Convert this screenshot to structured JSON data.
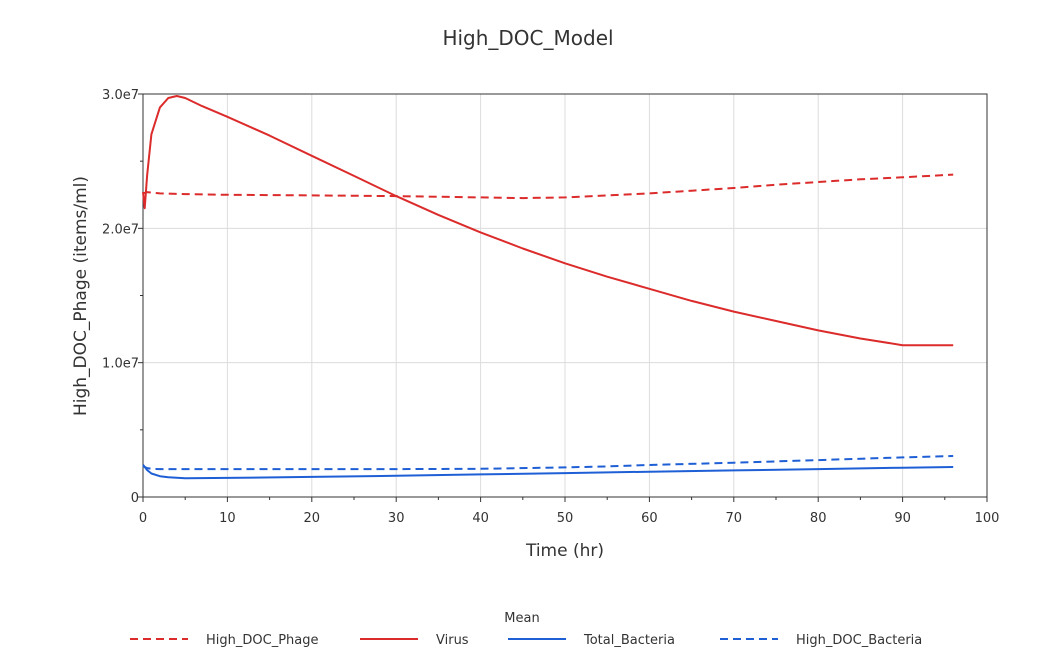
{
  "chart_data": {
    "type": "line",
    "title": "High_DOC_Model",
    "xlabel": "Time (hr)",
    "ylabel": "High_DOC_Phage (items/ml)",
    "xlim": [
      0,
      100
    ],
    "ylim": [
      0,
      30000000
    ],
    "x_ticks": [
      0,
      10,
      20,
      30,
      40,
      50,
      60,
      70,
      80,
      90,
      100
    ],
    "x_tick_labels": [
      "0",
      "10",
      "20",
      "30",
      "40",
      "50",
      "60",
      "70",
      "80",
      "90",
      "100"
    ],
    "y_ticks": [
      0,
      10000000,
      20000000,
      30000000
    ],
    "y_tick_labels": [
      "0",
      "1.0e7",
      "2.0e7",
      "3.0e7"
    ],
    "grid": true,
    "legend_title": "Mean",
    "legend_position": "bottom",
    "series": [
      {
        "name": "High_DOC_Phage",
        "color": "#dc2b2b",
        "style": "dashed",
        "x": [
          0,
          0.5,
          2,
          5,
          10,
          20,
          30,
          40,
          45,
          50,
          55,
          60,
          65,
          70,
          75,
          80,
          85,
          90,
          96
        ],
        "y": [
          22600000,
          22700000,
          22600000,
          22550000,
          22500000,
          22450000,
          22400000,
          22300000,
          22250000,
          22300000,
          22450000,
          22600000,
          22800000,
          23000000,
          23250000,
          23450000,
          23650000,
          23800000,
          24000000
        ]
      },
      {
        "name": "Virus",
        "color": "#dc2b2b",
        "style": "solid",
        "x": [
          0,
          0.2,
          0.5,
          1,
          2,
          3,
          4,
          5,
          7,
          10,
          15,
          20,
          25,
          30,
          35,
          40,
          45,
          50,
          55,
          60,
          65,
          70,
          75,
          80,
          85,
          90,
          96
        ],
        "y": [
          22700000,
          21500000,
          24000000,
          27000000,
          29000000,
          29700000,
          29850000,
          29700000,
          29100000,
          28300000,
          26900000,
          25400000,
          23900000,
          22400000,
          21000000,
          19700000,
          18500000,
          17400000,
          16400000,
          15500000,
          14600000,
          13800000,
          13100000,
          12400000,
          11800000,
          11300000,
          11300000
        ]
      },
      {
        "name": "Total_Bacteria",
        "color": "#1f5fd6",
        "style": "solid",
        "x": [
          0,
          0.5,
          1,
          2,
          3,
          5,
          10,
          20,
          30,
          40,
          50,
          60,
          70,
          80,
          90,
          96
        ],
        "y": [
          2400000,
          2000000,
          1750000,
          1550000,
          1470000,
          1400000,
          1420000,
          1500000,
          1580000,
          1680000,
          1780000,
          1880000,
          1980000,
          2080000,
          2180000,
          2230000
        ]
      },
      {
        "name": "High_DOC_Bacteria",
        "color": "#1f5fd6",
        "style": "dashed",
        "x": [
          0,
          0.5,
          1,
          2,
          5,
          10,
          20,
          30,
          40,
          50,
          55,
          60,
          70,
          80,
          90,
          96
        ],
        "y": [
          2300000,
          2150000,
          2100000,
          2080000,
          2080000,
          2080000,
          2080000,
          2080000,
          2100000,
          2200000,
          2280000,
          2380000,
          2550000,
          2750000,
          2950000,
          3050000
        ]
      }
    ]
  }
}
